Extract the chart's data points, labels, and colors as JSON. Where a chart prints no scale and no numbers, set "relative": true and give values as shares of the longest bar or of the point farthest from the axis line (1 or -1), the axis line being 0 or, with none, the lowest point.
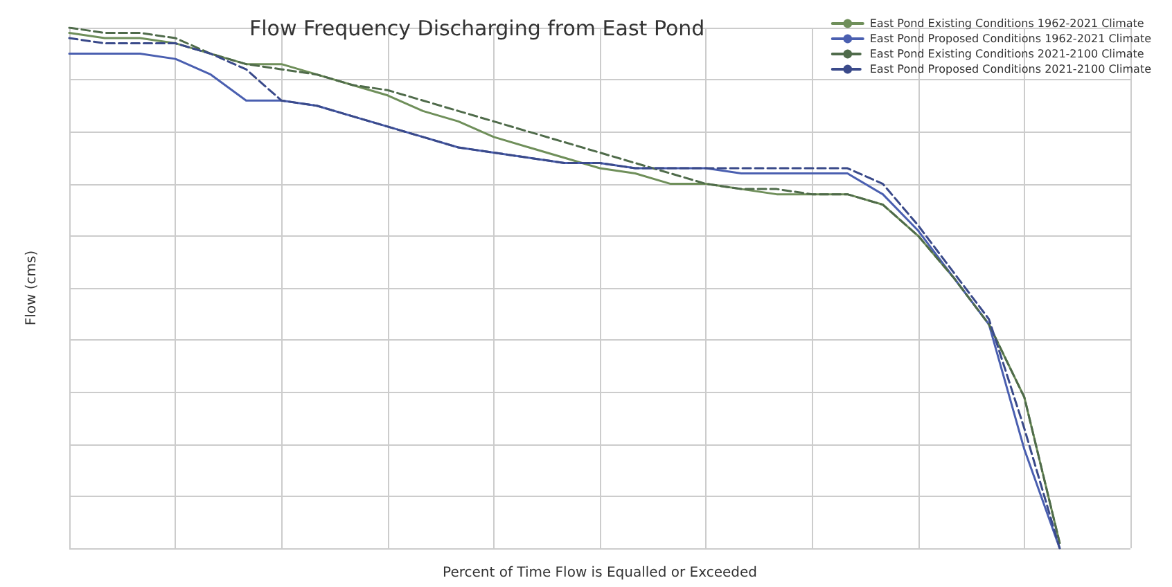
{
  "chart_data": {
    "type": "line",
    "title": "Flow Frequency Discharging from East Pond",
    "xlabel": "Percent of Time Flow is Equalled or Exceeded",
    "ylabel": "Flow (cms)",
    "relative": true,
    "grid": true,
    "legend": "top right",
    "marker": "none",
    "categories": [
      null,
      null,
      null,
      null,
      null,
      null,
      null,
      null,
      null,
      null,
      null,
      null,
      null,
      null,
      null,
      null,
      null,
      null,
      null,
      null,
      null,
      null,
      null,
      null,
      null,
      null,
      null,
      null,
      null,
      null,
      null
    ],
    "series": [
      {
        "name": "East Pond Existing Conditions 1962-2021 Climate",
        "color": "#6f8f5a",
        "line_style": "solid",
        "values": [
          0.99,
          0.98,
          0.98,
          0.97,
          0.95,
          0.93,
          0.93,
          0.91,
          0.89,
          0.87,
          0.84,
          0.82,
          0.79,
          0.77,
          0.75,
          0.73,
          0.72,
          0.7,
          0.7,
          0.69,
          0.68,
          0.68,
          0.68,
          0.66,
          0.6,
          0.52,
          0.43,
          0.29,
          0.01,
          null,
          null
        ]
      },
      {
        "name": "East Pond Proposed Conditions 1962-2021 Climate",
        "color": "#4a5fb0",
        "line_style": "solid",
        "values": [
          0.95,
          0.95,
          0.95,
          0.94,
          0.91,
          0.86,
          0.86,
          0.85,
          0.83,
          0.81,
          0.79,
          0.77,
          0.76,
          0.75,
          0.74,
          0.74,
          0.73,
          0.73,
          0.73,
          0.72,
          0.72,
          0.72,
          0.72,
          0.68,
          0.61,
          0.52,
          0.43,
          0.19,
          0.0,
          null,
          null
        ]
      },
      {
        "name": "East Pond Existing Conditions 2021-2100 Climate",
        "color": "#4f6b4a",
        "line_style": "dashed",
        "values": [
          1.0,
          0.99,
          0.99,
          0.98,
          0.95,
          0.93,
          0.92,
          0.91,
          0.89,
          0.88,
          0.86,
          0.84,
          0.82,
          0.8,
          0.78,
          0.76,
          0.74,
          0.72,
          0.7,
          0.69,
          0.69,
          0.68,
          0.68,
          0.66,
          0.6,
          0.52,
          0.43,
          0.29,
          0.01,
          null,
          null
        ]
      },
      {
        "name": "East Pond Proposed Conditions 2021-2100 Climate",
        "color": "#3a4a8a",
        "line_style": "dashed",
        "values": [
          0.98,
          0.97,
          0.97,
          0.97,
          0.95,
          0.92,
          0.86,
          0.85,
          0.83,
          0.81,
          0.79,
          0.77,
          0.76,
          0.75,
          0.74,
          0.74,
          0.73,
          0.73,
          0.73,
          0.73,
          0.73,
          0.73,
          0.73,
          0.7,
          0.62,
          0.53,
          0.44,
          0.23,
          0.0,
          null,
          null
        ]
      }
    ]
  }
}
